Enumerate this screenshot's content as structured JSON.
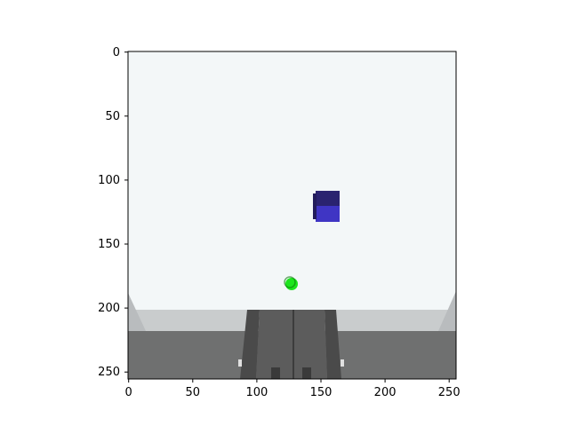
{
  "figure": {
    "x_ticks": [
      "0",
      "50",
      "100",
      "150",
      "200",
      "250"
    ],
    "y_ticks": [
      "0",
      "50",
      "100",
      "150",
      "200",
      "250"
    ],
    "colors": {
      "sky": "#f3f7f8",
      "floor_far": "#c9cccd",
      "floor_near": "#6f7070",
      "track": "#5a5a5a",
      "cube_top": "#2a2370",
      "cube_front": "#3f35c4",
      "ball": "#1ee51e"
    }
  },
  "scene": {
    "objects": [
      {
        "name": "blue-cube",
        "color": "#3f35c4"
      },
      {
        "name": "green-ball",
        "color": "#1ee51e"
      },
      {
        "name": "gray-track",
        "color": "#5a5a5a"
      }
    ]
  }
}
